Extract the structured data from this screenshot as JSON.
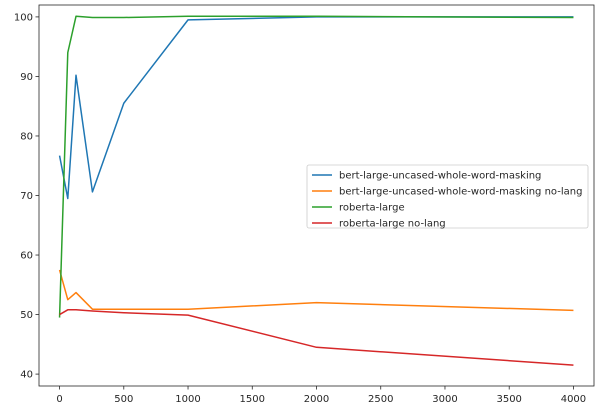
{
  "chart_data": {
    "type": "line",
    "title": "",
    "xlabel": "",
    "ylabel": "",
    "xlim": [
      -160,
      4160
    ],
    "ylim": [
      38.0,
      102.0
    ],
    "xticks": [
      0,
      500,
      1000,
      1500,
      2000,
      2500,
      3000,
      3500,
      4000
    ],
    "yticks": [
      40,
      50,
      60,
      70,
      80,
      90,
      100
    ],
    "grid": false,
    "legend_position": "center-right",
    "series": [
      {
        "name": "bert-large-uncased-whole-word-masking",
        "color": "#1f77b4",
        "x": [
          0,
          64,
          128,
          256,
          500,
          1000,
          2000,
          4000
        ],
        "y": [
          76.7,
          69.5,
          90.2,
          70.6,
          85.5,
          99.5,
          100.0,
          100.0
        ]
      },
      {
        "name": "bert-large-uncased-whole-word-masking no-lang",
        "color": "#ff7f0e",
        "x": [
          0,
          64,
          128,
          256,
          500,
          1000,
          2000,
          4000
        ],
        "y": [
          57.5,
          52.5,
          53.7,
          50.9,
          50.9,
          50.9,
          52.0,
          50.7
        ]
      },
      {
        "name": "roberta-large",
        "color": "#2ca02c",
        "x": [
          0,
          64,
          128,
          256,
          500,
          1000,
          2000,
          4000
        ],
        "y": [
          49.5,
          94.0,
          100.1,
          99.9,
          99.9,
          100.1,
          100.1,
          99.9
        ]
      },
      {
        "name": "roberta-large no-lang",
        "color": "#d62728",
        "x": [
          0,
          64,
          128,
          256,
          500,
          1000,
          2000,
          4000
        ],
        "y": [
          50.0,
          50.8,
          50.8,
          50.6,
          50.3,
          49.9,
          44.5,
          41.5
        ]
      }
    ]
  }
}
